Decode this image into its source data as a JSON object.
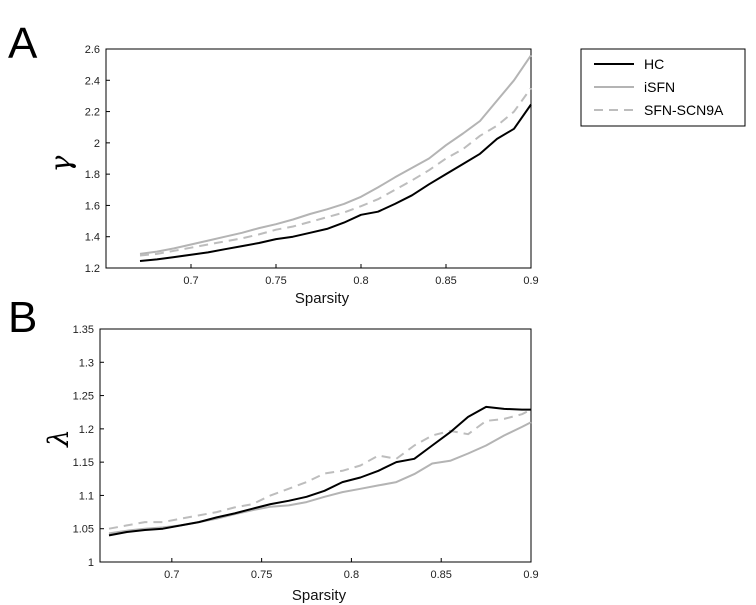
{
  "colors": {
    "HC": "#000000",
    "iSFN": "#b4b4b4",
    "SFN-SCN9A": "#bdbdbd"
  },
  "legend": {
    "placement": "top-right",
    "entries": [
      {
        "name": "HC",
        "style": "solid"
      },
      {
        "name": "iSFN",
        "style": "solid"
      },
      {
        "name": "SFN-SCN9A",
        "style": "dashed"
      }
    ]
  },
  "chart_data": [
    {
      "panel": "A",
      "type": "line",
      "ylabel": "γ",
      "xlabel": "Sparsity",
      "xlim": [
        0.65,
        0.9
      ],
      "ylim": [
        1.2,
        2.6
      ],
      "xticks": [
        "0.7",
        "0.75",
        "0.8",
        "0.85",
        "0.9"
      ],
      "yticks": [
        "1.2",
        "1.4",
        "1.6",
        "1.8",
        "2",
        "2.2",
        "2.4",
        "2.6"
      ],
      "x": [
        0.67,
        0.68,
        0.69,
        0.7,
        0.71,
        0.72,
        0.73,
        0.74,
        0.75,
        0.76,
        0.77,
        0.78,
        0.79,
        0.8,
        0.81,
        0.82,
        0.83,
        0.84,
        0.85,
        0.86,
        0.87,
        0.88,
        0.89,
        0.9
      ],
      "series": [
        {
          "name": "HC",
          "values": [
            1.245,
            1.255,
            1.27,
            1.285,
            1.3,
            1.32,
            1.34,
            1.36,
            1.385,
            1.4,
            1.425,
            1.45,
            1.49,
            1.54,
            1.56,
            1.61,
            1.665,
            1.735,
            1.8,
            1.865,
            1.93,
            2.025,
            2.09,
            2.245
          ]
        },
        {
          "name": "iSFN",
          "values": [
            1.29,
            1.305,
            1.325,
            1.35,
            1.375,
            1.4,
            1.425,
            1.455,
            1.48,
            1.51,
            1.545,
            1.575,
            1.61,
            1.655,
            1.715,
            1.78,
            1.84,
            1.9,
            1.985,
            2.06,
            2.14,
            2.27,
            2.4,
            2.56
          ]
        },
        {
          "name": "SFN-SCN9A",
          "values": [
            1.28,
            1.29,
            1.31,
            1.33,
            1.35,
            1.37,
            1.39,
            1.415,
            1.445,
            1.465,
            1.495,
            1.525,
            1.555,
            1.595,
            1.64,
            1.7,
            1.76,
            1.825,
            1.9,
            1.96,
            2.045,
            2.11,
            2.2,
            2.35
          ]
        }
      ]
    },
    {
      "panel": "B",
      "type": "line",
      "ylabel": "λ",
      "xlabel": "Sparsity",
      "xlim": [
        0.66,
        0.9
      ],
      "ylim": [
        1.0,
        1.35
      ],
      "xticks": [
        "0.7",
        "0.75",
        "0.8",
        "0.85",
        "0.9"
      ],
      "yticks": [
        "1",
        "1.05",
        "1.1",
        "1.15",
        "1.2",
        "1.25",
        "1.3",
        "1.35"
      ],
      "x": [
        0.665,
        0.675,
        0.685,
        0.695,
        0.705,
        0.715,
        0.725,
        0.735,
        0.745,
        0.755,
        0.765,
        0.775,
        0.785,
        0.795,
        0.805,
        0.815,
        0.825,
        0.835,
        0.845,
        0.855,
        0.865,
        0.875,
        0.885,
        0.895,
        0.9
      ],
      "series": [
        {
          "name": "HC",
          "values": [
            1.04,
            1.045,
            1.048,
            1.05,
            1.055,
            1.06,
            1.067,
            1.073,
            1.08,
            1.087,
            1.092,
            1.098,
            1.107,
            1.12,
            1.127,
            1.137,
            1.15,
            1.155,
            1.175,
            1.195,
            1.218,
            1.233,
            1.23,
            1.229,
            1.229
          ]
        },
        {
          "name": "iSFN",
          "values": [
            1.043,
            1.047,
            1.05,
            1.052,
            1.055,
            1.06,
            1.065,
            1.072,
            1.078,
            1.083,
            1.085,
            1.09,
            1.098,
            1.105,
            1.11,
            1.115,
            1.12,
            1.132,
            1.148,
            1.152,
            1.163,
            1.175,
            1.19,
            1.203,
            1.21
          ]
        },
        {
          "name": "SFN-SCN9A",
          "values": [
            1.05,
            1.055,
            1.06,
            1.06,
            1.065,
            1.07,
            1.075,
            1.082,
            1.087,
            1.1,
            1.11,
            1.12,
            1.133,
            1.137,
            1.145,
            1.16,
            1.155,
            1.175,
            1.19,
            1.197,
            1.192,
            1.212,
            1.215,
            1.222,
            1.229
          ]
        }
      ]
    }
  ],
  "panels": {
    "A": {
      "letter": "A",
      "ylabel": "γ",
      "xlabel": "Sparsity"
    },
    "B": {
      "letter": "B",
      "ylabel": "λ",
      "xlabel": "Sparsity"
    }
  }
}
